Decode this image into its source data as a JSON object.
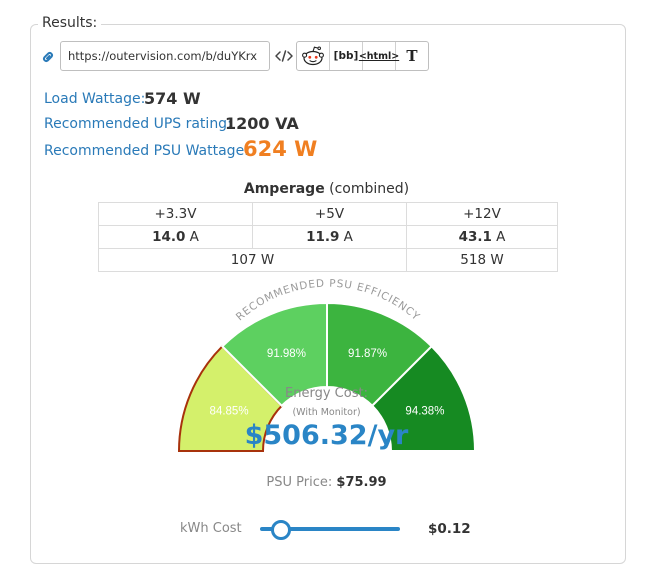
{
  "results": {
    "legend": "Results:",
    "share_url": "https://outervision.com/b/duYKrx",
    "share_buttons": [
      {
        "name": "reddit-share-button",
        "icon": "reddit-icon",
        "text": ""
      },
      {
        "name": "bbcode-share-button",
        "icon": "bbcode-icon",
        "text": "[bb]"
      },
      {
        "name": "html-share-button",
        "icon": "html-icon",
        "text": "<html>"
      },
      {
        "name": "text-share-button",
        "icon": "text-icon",
        "text": "T"
      }
    ]
  },
  "wattage": {
    "load_label": "Load Wattage:",
    "load_value": "574 W",
    "ups_label": "Recommended UPS rating:",
    "ups_value": "1200 VA",
    "psu_label": "Recommended PSU Wattage:",
    "psu_value": "624 W",
    "psu_value_color": "#f07f21",
    "label_color": "#2a7ab8"
  },
  "amperage": {
    "title_bold": "Amperage",
    "title_rest": "(combined)",
    "rails": [
      {
        "name": "+3.3V",
        "amps": "14.0",
        "unit": "A"
      },
      {
        "name": "+5V",
        "amps": "11.9",
        "unit": "A"
      },
      {
        "name": "+12V",
        "amps": "43.1",
        "unit": "A"
      }
    ],
    "watts_low": "107 W",
    "watts_12v": "518 W"
  },
  "gauge": {
    "arc_title": "RECOMMENDED PSU EFFICIENCY",
    "segments": [
      {
        "label": "84.85%",
        "color": "#d4f06b",
        "selected": true
      },
      {
        "label": "91.98%",
        "color": "#5dd060",
        "selected": false
      },
      {
        "label": "91.87%",
        "color": "#3cb43f",
        "selected": false
      },
      {
        "label": "94.38%",
        "color": "#168a22",
        "selected": false
      }
    ],
    "selected_outline": "#a8320c"
  },
  "energy": {
    "label": "Energy Cost:",
    "sub": "(With Monitor)",
    "value": "$506.32/yr",
    "value_color": "#2a85c6"
  },
  "psu_price": {
    "label": "PSU Price:",
    "value": "$75.99"
  },
  "kwh": {
    "label": "kWh Cost",
    "value": "$0.12",
    "slider_fraction": 0.15
  }
}
